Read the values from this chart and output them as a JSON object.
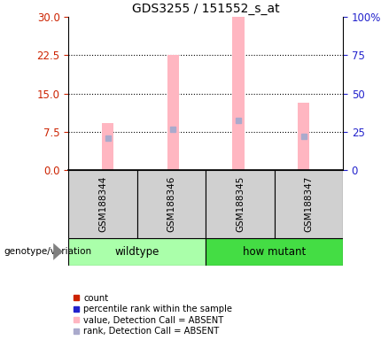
{
  "title": "GDS3255 / 151552_s_at",
  "samples": [
    "GSM188344",
    "GSM188346",
    "GSM188345",
    "GSM188347"
  ],
  "bar_values": [
    9.2,
    22.5,
    30.0,
    13.2
  ],
  "rank_values": [
    21.0,
    26.5,
    32.5,
    22.0
  ],
  "ylim_left": [
    0,
    30
  ],
  "ylim_right": [
    0,
    100
  ],
  "yticks_left": [
    0,
    7.5,
    15,
    22.5,
    30
  ],
  "yticks_right": [
    0,
    25,
    50,
    75,
    100
  ],
  "bar_color_absent": "#FFB6C1",
  "rank_color_absent": "#AAAACC",
  "bar_color_present": "#CC2200",
  "rank_color_present": "#2222CC",
  "left_axis_color": "#CC2200",
  "right_axis_color": "#2222CC",
  "title_fontsize": 10,
  "wildtype_color": "#AAFFAA",
  "howmutant_color": "#44DD44",
  "sample_box_color": "#D0D0D0",
  "bar_width": 0.18
}
